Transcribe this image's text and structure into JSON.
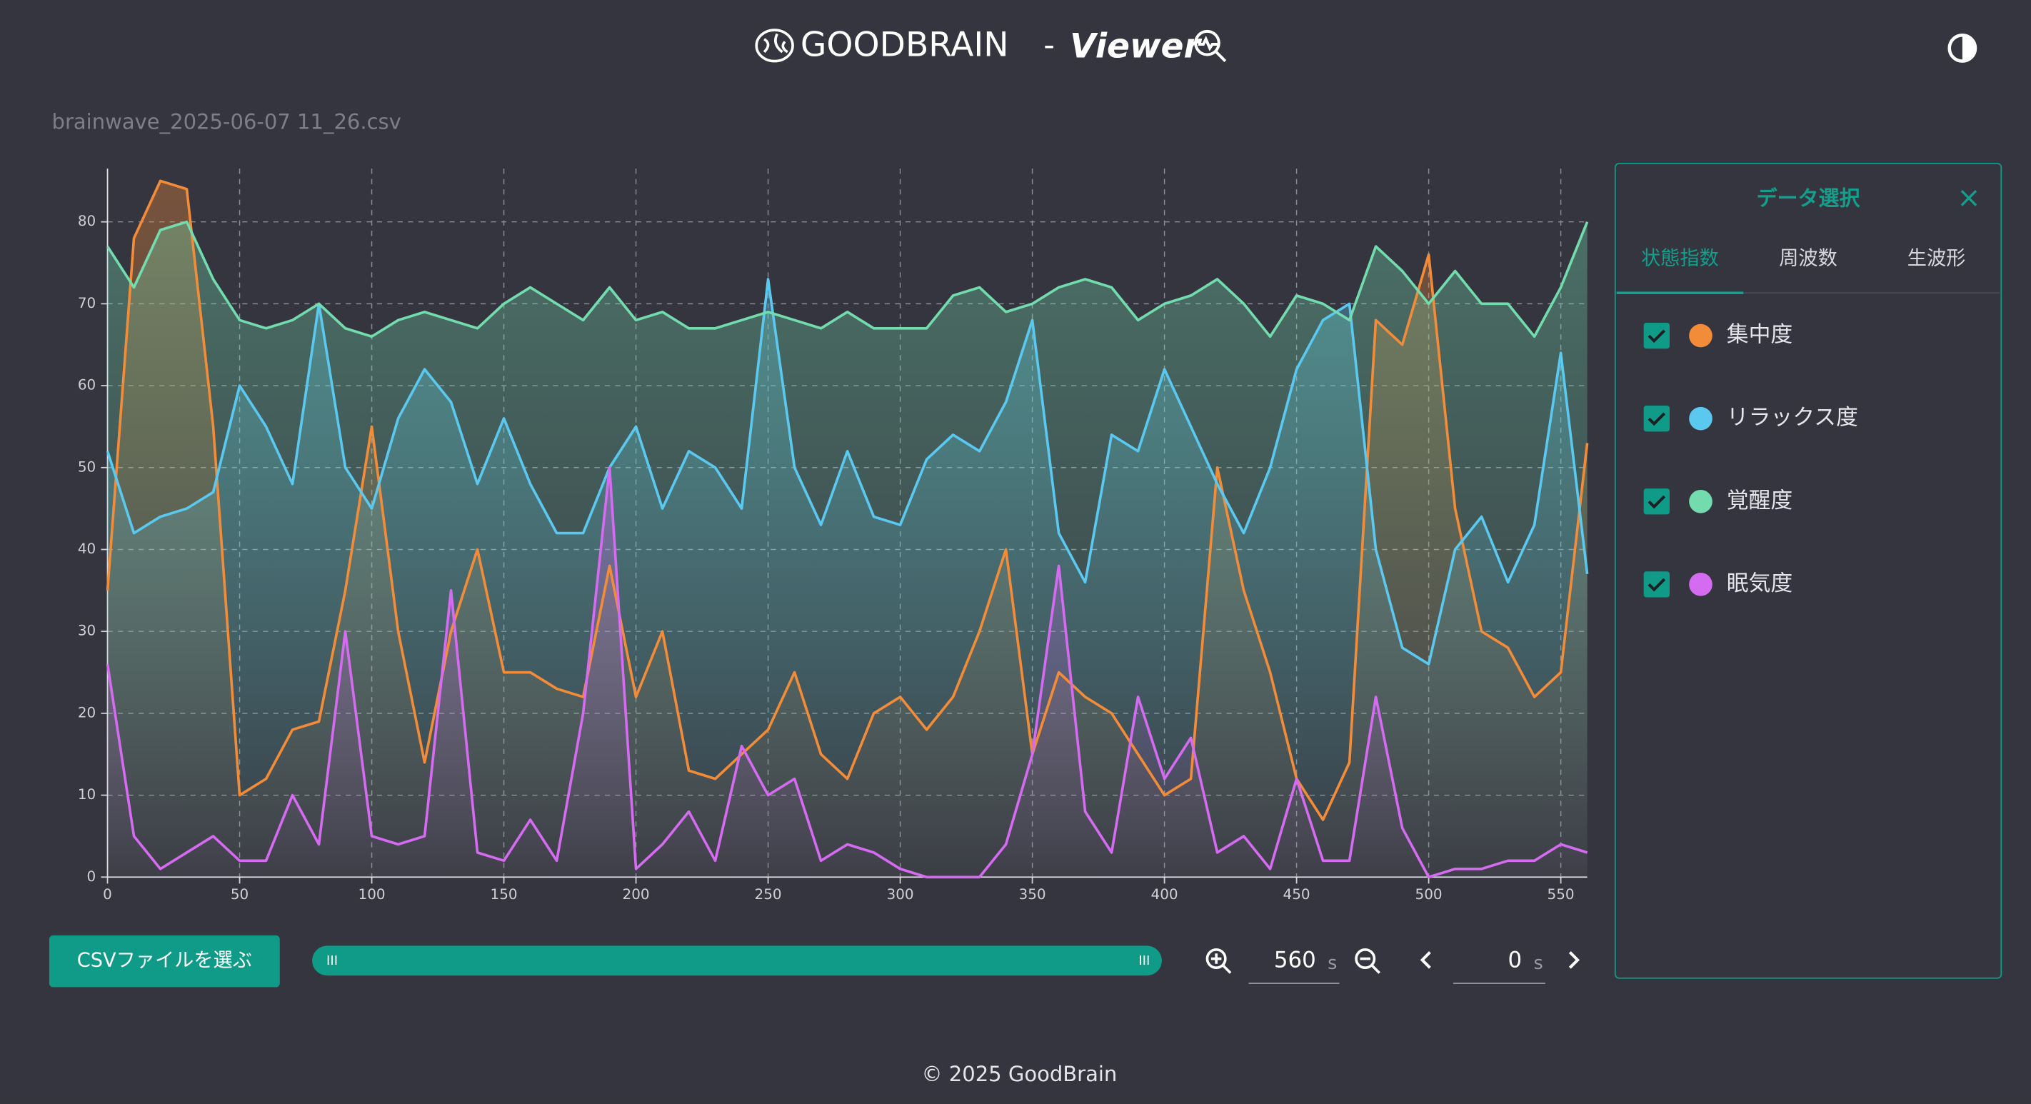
{
  "header": {
    "brand": "GOODBRAIN",
    "dash": "-",
    "product": "Viewer"
  },
  "file_name": "brainwave_2025-06-07 11_26.csv",
  "panel": {
    "title": "データ選択",
    "close": "×",
    "tabs": [
      "状態指数",
      "周波数",
      "生波形"
    ]
  },
  "controls": {
    "csv_button": "CSVファイルを選ぶ",
    "window_value": "560",
    "window_unit": "s",
    "offset_value": "0",
    "offset_unit": "s"
  },
  "footer": "© 2025 GoodBrain",
  "chart_data": {
    "type": "line",
    "xlim": [
      0,
      560
    ],
    "xticks": [
      0,
      50,
      100,
      150,
      200,
      250,
      300,
      350,
      400,
      450,
      500,
      550
    ],
    "ylim": [
      0,
      86.5
    ],
    "yticks": [
      0,
      10,
      20,
      30,
      40,
      50,
      60,
      70,
      80
    ],
    "grid": true,
    "x": [
      0,
      10,
      20,
      30,
      40,
      50,
      60,
      70,
      80,
      90,
      100,
      110,
      120,
      130,
      140,
      150,
      160,
      170,
      180,
      190,
      200,
      210,
      220,
      230,
      240,
      250,
      260,
      270,
      280,
      290,
      300,
      310,
      320,
      330,
      340,
      350,
      360,
      370,
      380,
      390,
      400,
      410,
      420,
      430,
      440,
      450,
      460,
      470,
      480,
      490,
      500,
      510,
      520,
      530,
      540,
      550,
      560
    ],
    "series": [
      {
        "name": "集中度",
        "color": "#f28c38",
        "values": [
          35,
          78,
          85,
          84,
          55,
          10,
          12,
          18,
          19,
          35,
          55,
          30,
          14,
          30,
          40,
          25,
          25,
          23,
          22,
          38,
          22,
          30,
          13,
          12,
          15,
          18,
          25,
          15,
          12,
          20,
          22,
          18,
          22,
          30,
          40,
          15,
          25,
          22,
          20,
          15,
          10,
          12,
          50,
          35,
          25,
          12,
          7,
          14,
          68,
          65,
          76,
          45,
          30,
          28,
          22,
          25,
          53
        ]
      },
      {
        "name": "リラックス度",
        "color": "#5bc8f0",
        "values": [
          52,
          42,
          44,
          45,
          47,
          60,
          55,
          48,
          70,
          50,
          45,
          56,
          62,
          58,
          48,
          56,
          48,
          42,
          42,
          50,
          55,
          45,
          52,
          50,
          45,
          73,
          50,
          43,
          52,
          44,
          43,
          51,
          54,
          52,
          58,
          68,
          42,
          36,
          54,
          52,
          62,
          55,
          48,
          42,
          50,
          62,
          68,
          70,
          40,
          28,
          26,
          40,
          44,
          36,
          43,
          64,
          37
        ]
      },
      {
        "name": "覚醒度",
        "color": "#72dcae",
        "values": [
          77,
          72,
          79,
          80,
          73,
          68,
          67,
          68,
          70,
          67,
          66,
          68,
          69,
          68,
          67,
          70,
          72,
          70,
          68,
          72,
          68,
          69,
          67,
          67,
          68,
          69,
          68,
          67,
          69,
          67,
          67,
          67,
          71,
          72,
          69,
          70,
          72,
          73,
          72,
          68,
          70,
          71,
          73,
          70,
          66,
          71,
          70,
          68,
          77,
          74,
          70,
          74,
          70,
          70,
          66,
          72,
          80
        ]
      },
      {
        "name": "眠気度",
        "color": "#d46bf0",
        "values": [
          26,
          5,
          1,
          3,
          5,
          2,
          2,
          10,
          4,
          30,
          5,
          4,
          5,
          35,
          3,
          2,
          7,
          2,
          20,
          50,
          1,
          4,
          8,
          2,
          16,
          10,
          12,
          2,
          4,
          3,
          1,
          0,
          0,
          0,
          4,
          15,
          38,
          8,
          3,
          22,
          12,
          17,
          3,
          5,
          1,
          12,
          2,
          2,
          22,
          6,
          0,
          1,
          1,
          2,
          2,
          4,
          3
        ]
      }
    ]
  }
}
